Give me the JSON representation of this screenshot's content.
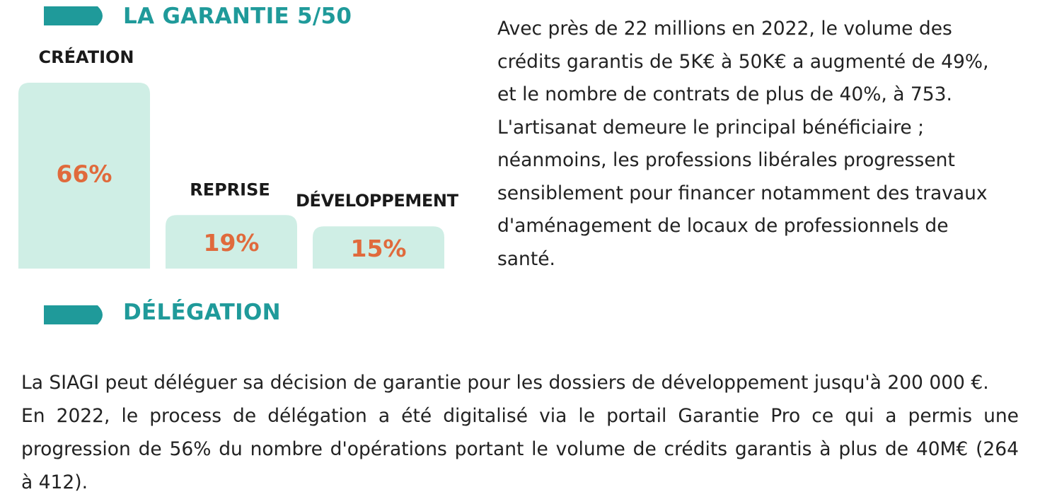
{
  "colors": {
    "accent": "#1f9a9a",
    "bar_fill": "#cfeee5",
    "value_text": "#e06a3c",
    "label_text": "#1a1a1a",
    "body_text": "#222222"
  },
  "section_garantie": {
    "title": "LA GARANTIE 5/50",
    "icon": "arrow-tab-icon"
  },
  "chart_data": {
    "type": "bar",
    "categories": [
      "CRÉATION",
      "REPRISE",
      "DÉVELOPPEMENT"
    ],
    "values": [
      66,
      19,
      15
    ],
    "value_labels": [
      "66%",
      "19%",
      "15%"
    ],
    "ylim": [
      0,
      66
    ],
    "grid": false,
    "legend": "none"
  },
  "paragraph_right": {
    "lines": [
      "Avec près de 22 millions en 2022, le volume des",
      "crédits garantis de 5K€ à 50K€ a augmenté de 49%,",
      "et le nombre de contrats de plus de 40%, à 753.",
      "L'artisanat demeure le principal bénéficiaire ;",
      "néanmoins, les professions libérales progressent",
      "sensiblement pour financer notamment des travaux",
      "d'aménagement de locaux de professionnels de",
      "santé."
    ]
  },
  "section_delegation": {
    "title": "DÉLÉGATION",
    "icon": "arrow-tab-icon"
  },
  "paragraph_bottom": {
    "lines": [
      "La SIAGI peut déléguer sa décision de garantie pour les dossiers de développement jusqu'à 200 000 €.",
      "En 2022, le process de délégation a été digitalisé via le portail Garantie Pro ce qui a permis une",
      "progression de 56% du nombre d'opérations portant le volume de crédits garantis à plus de 40M€ (264",
      "à 412)."
    ]
  }
}
